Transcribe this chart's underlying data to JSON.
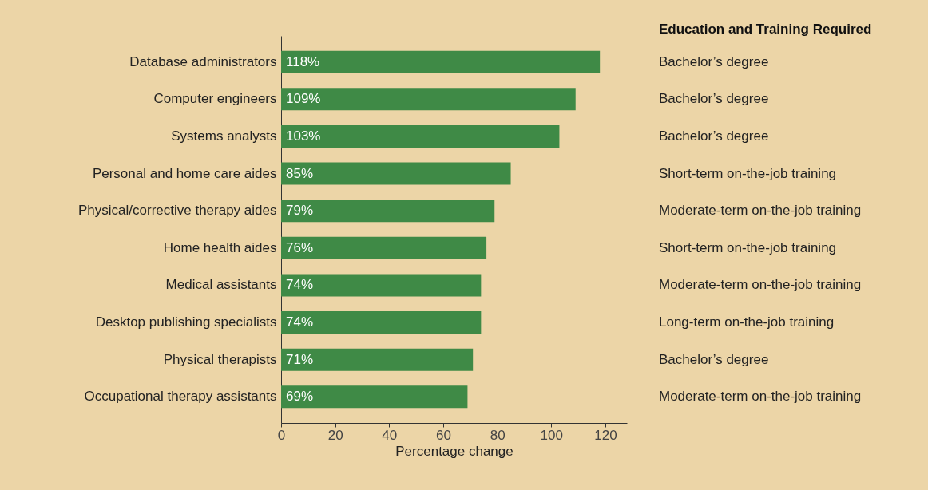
{
  "chart_data": {
    "type": "bar",
    "orientation": "horizontal",
    "categories": [
      "Database administrators",
      "Computer engineers",
      "Systems analysts",
      "Personal and home care aides",
      "Physical/corrective therapy aides",
      "Home health aides",
      "Medical assistants",
      "Desktop publishing specialists",
      "Physical therapists",
      "Occupational therapy assistants"
    ],
    "values": [
      118,
      109,
      103,
      85,
      79,
      76,
      74,
      74,
      71,
      69
    ],
    "value_labels": [
      "118%",
      "109%",
      "103%",
      "85%",
      "79%",
      "76%",
      "74%",
      "74%",
      "71%",
      "69%"
    ],
    "color": "#3f8a46",
    "xlim": [
      0,
      128
    ],
    "xticks": [
      0,
      20,
      40,
      60,
      80,
      100,
      120
    ],
    "xlabel": "Percentage change",
    "grid": false,
    "annotations": [
      "Education and Training Required",
      "Bachelor’s degree",
      "Bachelor’s degree",
      "Bachelor’s degree",
      "Short-term on-the-job training",
      "Moderate-term on-the-job training",
      "Short-term on-the-job training",
      "Moderate-term on-the-job training",
      "Long-term on-the-job training",
      "Bachelor’s degree",
      "Moderate-term on-the-job training"
    ]
  }
}
